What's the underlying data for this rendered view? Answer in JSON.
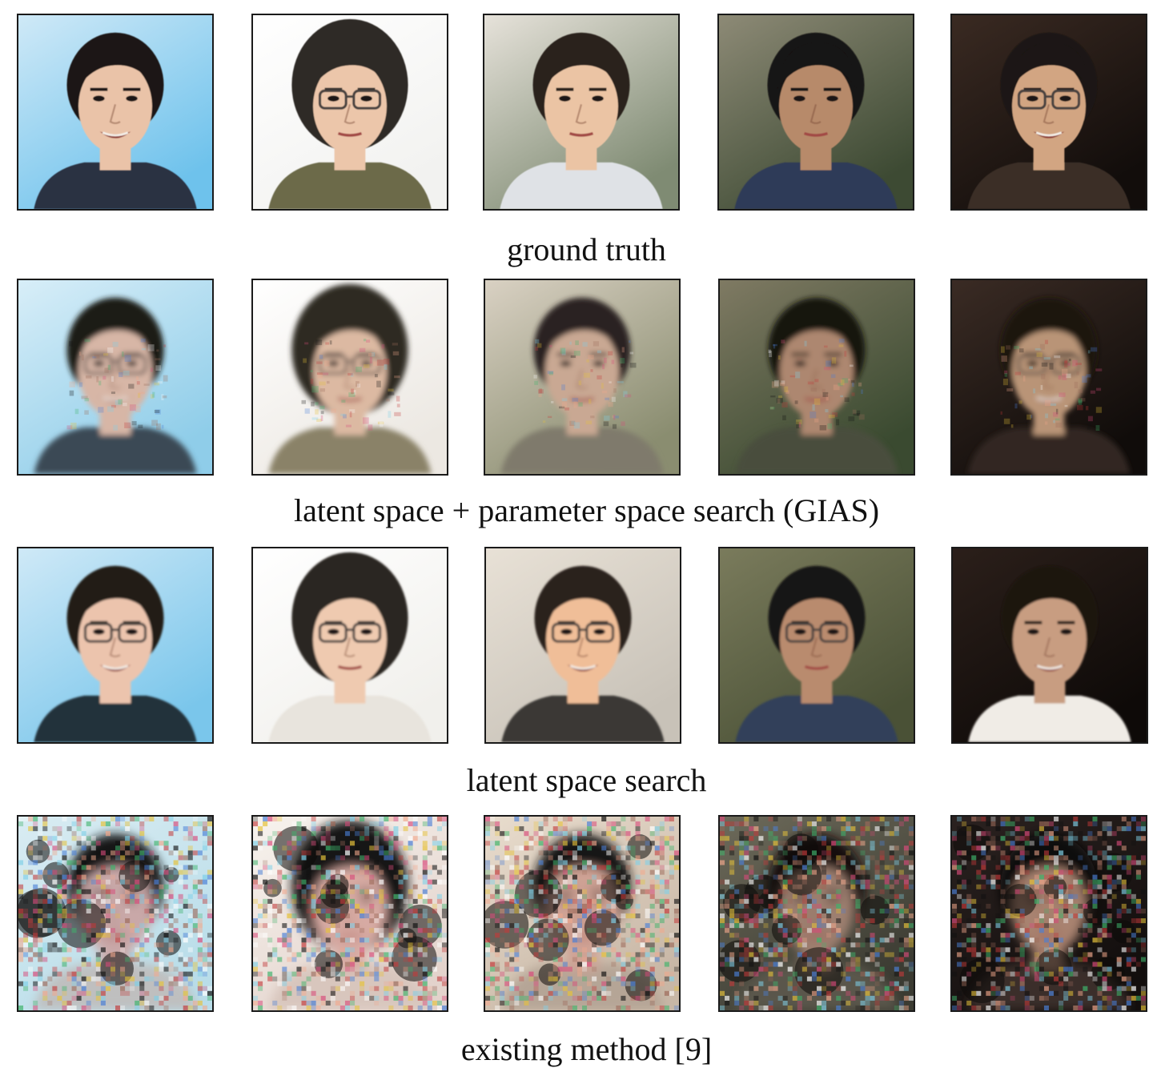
{
  "figure": {
    "rows": [
      {
        "caption": "ground truth",
        "style": "clean",
        "tiles": [
          {
            "bg": [
              "#cfe9f7",
              "#6ec2ec"
            ],
            "skin": "#eac3a8",
            "hair": "#1b1714",
            "cloth": "#2a3142",
            "glasses": false,
            "smile": true
          },
          {
            "bg": [
              "#ffffff",
              "#f2f2f0"
            ],
            "skin": "#ecc6aa",
            "hair": "#2e2b25",
            "cloth": "#6c6a4a",
            "glasses": true,
            "smile": false
          },
          {
            "bg": [
              "#e6e2da",
              "#7f8b73"
            ],
            "skin": "#ebc4a4",
            "hair": "#2a241f",
            "cloth": "#dfe2e6",
            "glasses": false,
            "smile": false
          },
          {
            "bg": [
              "#8d8a76",
              "#3d4a33"
            ],
            "skin": "#b78a6b",
            "hair": "#141212",
            "cloth": "#2f3a58",
            "glasses": false,
            "smile": false
          },
          {
            "bg": [
              "#3a2a22",
              "#120d0b"
            ],
            "skin": "#d2a582",
            "hair": "#1a1512",
            "cloth": "#3b2f28",
            "glasses": true,
            "smile": true
          }
        ]
      },
      {
        "caption": "latent space + parameter space search (GIAS)",
        "style": "blur",
        "tiles": [
          {
            "bg": [
              "#d8eef8",
              "#8fcde9"
            ],
            "skin": "#d7b6a6",
            "hair": "#1f1b18",
            "cloth": "#3b4a55",
            "glasses": true,
            "smile": true
          },
          {
            "bg": [
              "#ffffff",
              "#ece8e2"
            ],
            "skin": "#dcb9a2",
            "hair": "#2e2a24",
            "cloth": "#8a8268",
            "glasses": true,
            "smile": false
          },
          {
            "bg": [
              "#d9d1c3",
              "#8a8d70"
            ],
            "skin": "#c9a893",
            "hair": "#2a2420",
            "cloth": "#7f7a6c",
            "glasses": false,
            "smile": false
          },
          {
            "bg": [
              "#7f7a63",
              "#3a4a30"
            ],
            "skin": "#ad8770",
            "hair": "#17140f",
            "cloth": "#4a4d3c",
            "glasses": false,
            "smile": false
          },
          {
            "bg": [
              "#3a2b24",
              "#100c0a"
            ],
            "skin": "#b99477",
            "hair": "#1b1511",
            "cloth": "#302721",
            "glasses": true,
            "smile": true
          }
        ]
      },
      {
        "caption": "latent space search",
        "style": "smooth",
        "tiles": [
          {
            "bg": [
              "#cfe9f7",
              "#7ac6eb"
            ],
            "skin": "#ecc4ad",
            "hair": "#221c18",
            "cloth": "#24303a",
            "glasses": true,
            "smile": true
          },
          {
            "bg": [
              "#ffffff",
              "#f1f0ec"
            ],
            "skin": "#efcab0",
            "hair": "#2b2622",
            "cloth": "#e8e4dd",
            "glasses": true,
            "smile": false
          },
          {
            "bg": [
              "#e8e1d6",
              "#c8c2b8"
            ],
            "skin": "#f0be98",
            "hair": "#2a211c",
            "cloth": "#3a3836",
            "glasses": true,
            "smile": true
          },
          {
            "bg": [
              "#7a7b5c",
              "#4a5136"
            ],
            "skin": "#b98b6e",
            "hair": "#151212",
            "cloth": "#30405a",
            "glasses": true,
            "smile": false
          },
          {
            "bg": [
              "#2b1f1a",
              "#0e0a08"
            ],
            "skin": "#c89d81",
            "hair": "#1a1310",
            "cloth": "#f0ece6",
            "glasses": false,
            "smile": true
          }
        ]
      },
      {
        "caption": "existing method [9]",
        "style": "noise",
        "tiles": [
          {
            "bg": [
              "#d9ecf2",
              "#b9dde9"
            ],
            "skin": "#c9a8a8",
            "hair": "#141414",
            "cloth": "#bfbfbf",
            "glasses": false,
            "smile": false
          },
          {
            "bg": [
              "#f7f3ee",
              "#e3d3cc"
            ],
            "skin": "#d7aaa3",
            "hair": "#151313",
            "cloth": "#d8c6bd",
            "glasses": false,
            "smile": false
          },
          {
            "bg": [
              "#e8dccd",
              "#c8b7a6"
            ],
            "skin": "#cfa294",
            "hair": "#161412",
            "cloth": "#b5a596",
            "glasses": false,
            "smile": false
          },
          {
            "bg": [
              "#6d6a5a",
              "#3b3b32"
            ],
            "skin": "#9d7f70",
            "hair": "#121110",
            "cloth": "#5a574b",
            "glasses": false,
            "smile": false
          },
          {
            "bg": [
              "#2b2220",
              "#120e0d"
            ],
            "skin": "#a8826f",
            "hair": "#0f0c0b",
            "cloth": "#3a2e29",
            "glasses": false,
            "smile": false
          }
        ]
      }
    ]
  }
}
